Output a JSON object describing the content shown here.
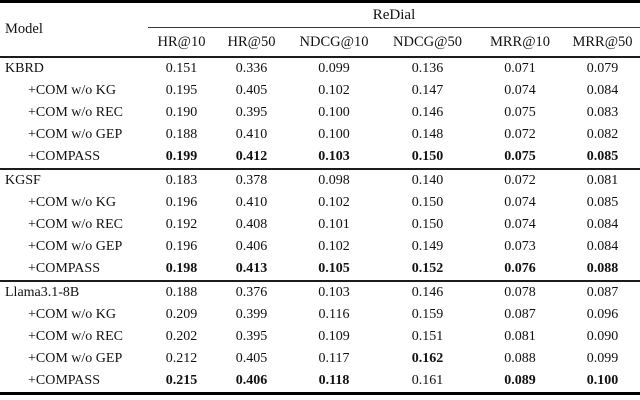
{
  "table": {
    "model_header": "Model",
    "dataset_header": "ReDial",
    "columns": [
      "HR@10",
      "HR@50",
      "NDCG@10",
      "NDCG@50",
      "MRR@10",
      "MRR@50"
    ],
    "groups": [
      {
        "rows": [
          {
            "model": "KBRD",
            "indent": false,
            "values": [
              "0.151",
              "0.336",
              "0.099",
              "0.136",
              "0.071",
              "0.079"
            ],
            "bold": [
              0,
              0,
              0,
              0,
              0,
              0
            ]
          },
          {
            "model": "+COM w/o KG",
            "indent": true,
            "values": [
              "0.195",
              "0.405",
              "0.102",
              "0.147",
              "0.074",
              "0.084"
            ],
            "bold": [
              0,
              0,
              0,
              0,
              0,
              0
            ]
          },
          {
            "model": "+COM w/o REC",
            "indent": true,
            "values": [
              "0.190",
              "0.395",
              "0.100",
              "0.146",
              "0.075",
              "0.083"
            ],
            "bold": [
              0,
              0,
              0,
              0,
              0,
              0
            ]
          },
          {
            "model": "+COM w/o GEP",
            "indent": true,
            "values": [
              "0.188",
              "0.410",
              "0.100",
              "0.148",
              "0.072",
              "0.082"
            ],
            "bold": [
              0,
              0,
              0,
              0,
              0,
              0
            ]
          },
          {
            "model": "+COMPASS",
            "indent": true,
            "values": [
              "0.199",
              "0.412",
              "0.103",
              "0.150",
              "0.075",
              "0.085"
            ],
            "bold": [
              1,
              1,
              1,
              1,
              1,
              1
            ]
          }
        ]
      },
      {
        "rows": [
          {
            "model": "KGSF",
            "indent": false,
            "values": [
              "0.183",
              "0.378",
              "0.098",
              "0.140",
              "0.072",
              "0.081"
            ],
            "bold": [
              0,
              0,
              0,
              0,
              0,
              0
            ]
          },
          {
            "model": "+COM w/o KG",
            "indent": true,
            "values": [
              "0.196",
              "0.410",
              "0.102",
              "0.150",
              "0.074",
              "0.085"
            ],
            "bold": [
              0,
              0,
              0,
              0,
              0,
              0
            ]
          },
          {
            "model": "+COM w/o REC",
            "indent": true,
            "values": [
              "0.192",
              "0.408",
              "0.101",
              "0.150",
              "0.074",
              "0.084"
            ],
            "bold": [
              0,
              0,
              0,
              0,
              0,
              0
            ]
          },
          {
            "model": "+COM w/o GEP",
            "indent": true,
            "values": [
              "0.196",
              "0.406",
              "0.102",
              "0.149",
              "0.073",
              "0.084"
            ],
            "bold": [
              0,
              0,
              0,
              0,
              0,
              0
            ]
          },
          {
            "model": "+COMPASS",
            "indent": true,
            "values": [
              "0.198",
              "0.413",
              "0.105",
              "0.152",
              "0.076",
              "0.088"
            ],
            "bold": [
              1,
              1,
              1,
              1,
              1,
              1
            ]
          }
        ]
      },
      {
        "rows": [
          {
            "model": "Llama3.1-8B",
            "indent": false,
            "values": [
              "0.188",
              "0.376",
              "0.103",
              "0.146",
              "0.078",
              "0.087"
            ],
            "bold": [
              0,
              0,
              0,
              0,
              0,
              0
            ]
          },
          {
            "model": "+COM w/o KG",
            "indent": true,
            "values": [
              "0.209",
              "0.399",
              "0.116",
              "0.159",
              "0.087",
              "0.096"
            ],
            "bold": [
              0,
              0,
              0,
              0,
              0,
              0
            ]
          },
          {
            "model": "+COM w/o REC",
            "indent": true,
            "values": [
              "0.202",
              "0.395",
              "0.109",
              "0.151",
              "0.081",
              "0.090"
            ],
            "bold": [
              0,
              0,
              0,
              0,
              0,
              0
            ]
          },
          {
            "model": "+COM w/o GEP",
            "indent": true,
            "values": [
              "0.212",
              "0.405",
              "0.117",
              "0.162",
              "0.088",
              "0.099"
            ],
            "bold": [
              0,
              0,
              0,
              1,
              0,
              0
            ]
          },
          {
            "model": "+COMPASS",
            "indent": true,
            "values": [
              "0.215",
              "0.406",
              "0.118",
              "0.161",
              "0.089",
              "0.100"
            ],
            "bold": [
              1,
              1,
              1,
              0,
              1,
              1
            ]
          }
        ]
      }
    ]
  }
}
